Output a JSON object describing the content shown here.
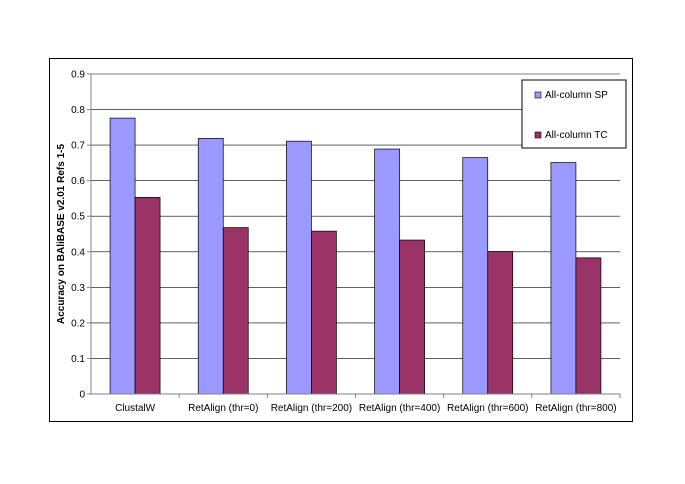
{
  "chart_data": {
    "type": "bar",
    "title": "",
    "xlabel": "",
    "ylabel": "Accuracy on BAliBASE v2.01 Refs 1-5",
    "ylim": [
      0,
      0.9
    ],
    "yticks": [
      "0",
      "0.1",
      "0.2",
      "0.3",
      "0.4",
      "0.5",
      "0.6",
      "0.7",
      "0.8",
      "0.9"
    ],
    "grid": true,
    "legend_position": "top-right",
    "categories": [
      "ClustalW",
      "RetAlign (thr=0)",
      "RetAlign (thr=200)",
      "RetAlign (thr=400)",
      "RetAlign (thr=600)",
      "RetAlign (thr=800)"
    ],
    "series": [
      {
        "name": "All-column SP",
        "color": "#9999ff",
        "values": [
          0.776,
          0.719,
          0.711,
          0.689,
          0.665,
          0.651
        ]
      },
      {
        "name": "All-column TC",
        "color": "#993366",
        "values": [
          0.553,
          0.468,
          0.458,
          0.433,
          0.401,
          0.383
        ]
      }
    ]
  }
}
